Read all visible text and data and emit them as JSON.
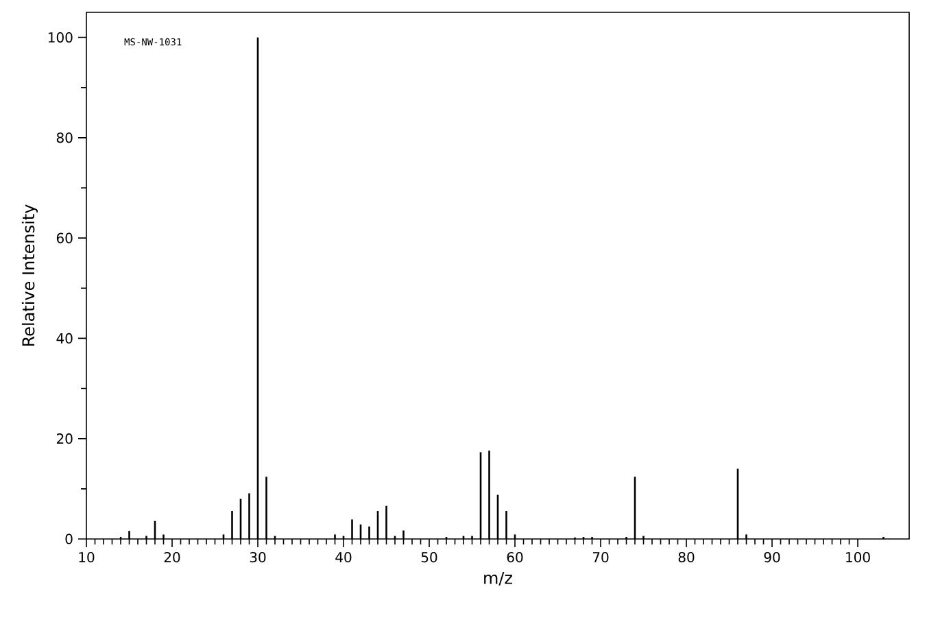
{
  "chart_data": {
    "type": "bar",
    "xlabel": "m/z",
    "ylabel": "Relative Intensity",
    "annotations": [
      "MS-NW-1031"
    ],
    "x": [
      14,
      15,
      17,
      18,
      19,
      26,
      27,
      28,
      29,
      30,
      31,
      32,
      39,
      40,
      41,
      42,
      43,
      44,
      45,
      46,
      47,
      52,
      54,
      55,
      56,
      57,
      58,
      59,
      60,
      67,
      68,
      69,
      73,
      74,
      75,
      86,
      87,
      103
    ],
    "values": [
      0.4,
      1.6,
      0.6,
      3.6,
      0.9,
      0.9,
      5.6,
      8.0,
      9.1,
      100,
      12.4,
      0.6,
      0.9,
      0.6,
      3.9,
      2.9,
      2.5,
      5.6,
      6.6,
      0.6,
      1.7,
      0.4,
      0.6,
      0.6,
      17.3,
      17.6,
      8.8,
      5.6,
      0.9,
      0.3,
      0.4,
      0.4,
      0.4,
      12.4,
      0.6,
      14.0,
      0.9,
      0.4
    ],
    "color": "#000000",
    "xlim": [
      10,
      106
    ],
    "ylim": [
      0,
      105
    ],
    "xticks": [
      10,
      20,
      30,
      40,
      50,
      60,
      70,
      80,
      90,
      100
    ],
    "yticks": [
      0,
      20,
      40,
      60,
      80,
      100
    ]
  }
}
